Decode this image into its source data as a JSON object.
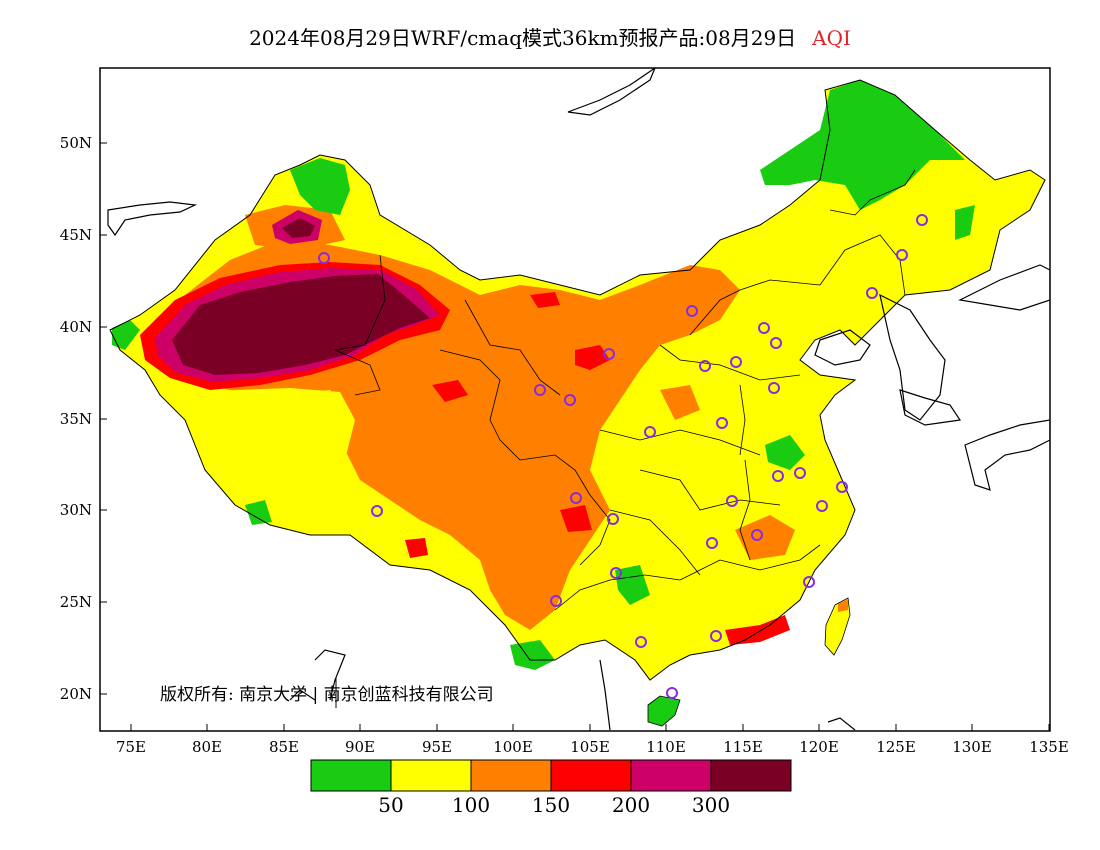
{
  "title": {
    "text": "2024年08月29日WRF/cmaq模式36km预报产品:08月29日",
    "variable": "AQI",
    "variable_color": "#e0252a"
  },
  "copyright": "版权所有: 南京大学 | 南京创蓝科技有限公司",
  "axes": {
    "lat_labels": [
      "50N",
      "45N",
      "40N",
      "35N",
      "30N",
      "25N",
      "20N"
    ],
    "lon_labels": [
      "75E",
      "80E",
      "85E",
      "90E",
      "95E",
      "100E",
      "105E",
      "110E",
      "115E",
      "120E",
      "125E",
      "130E",
      "135E"
    ]
  },
  "colorbar": {
    "colors": [
      "#19cc12",
      "#ffff00",
      "#ff7f00",
      "#ff0000",
      "#cc0066",
      "#7a0025"
    ],
    "labels": [
      "50",
      "100",
      "150",
      "200",
      "300"
    ]
  },
  "palette": {
    "good": "#19cc12",
    "moderate": "#ffff00",
    "sensitive": "#ff7f00",
    "unhealthy": "#ff0000",
    "very_unhealthy": "#cc0066",
    "hazardous": "#7a0025",
    "station_marker": "#8a2be2"
  }
}
